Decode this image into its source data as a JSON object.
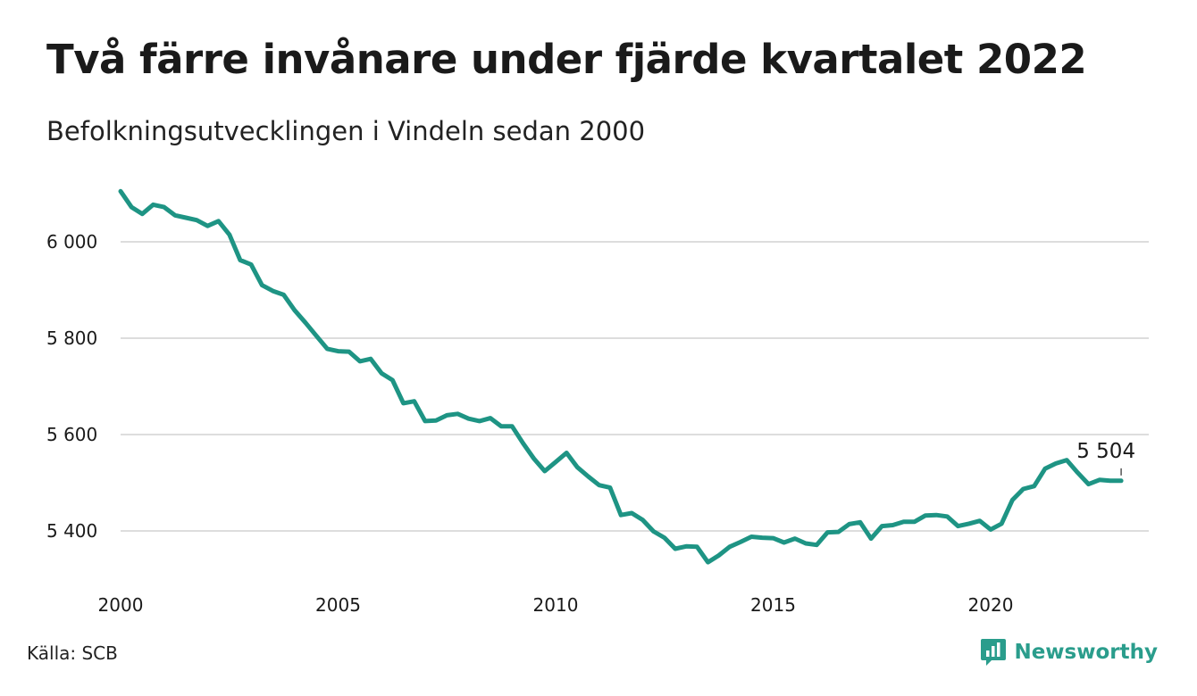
{
  "title": "Två färre invånare under fjärde kvartalet 2022",
  "subtitle": "Befolkningsutvecklingen i Vindeln sedan 2000",
  "source": "Källa: SCB",
  "brand": "Newsworthy",
  "colors": {
    "line": "#1e9484",
    "grid": "#dddddd",
    "brand": "#2a9d8c"
  },
  "chart_data": {
    "type": "line",
    "title": "Två färre invånare under fjärde kvartalet 2022",
    "subtitle": "Befolkningsutvecklingen i Vindeln sedan 2000",
    "xlabel": "",
    "ylabel": "",
    "xlim": [
      2000,
      2023
    ],
    "ylim": [
      5300,
      6110
    ],
    "y_ticks": [
      6000,
      5800,
      5600,
      5400
    ],
    "y_tick_labels": [
      "6 000",
      "5 800",
      "5 600",
      "5 400"
    ],
    "x_ticks": [
      2000,
      2005,
      2010,
      2015,
      2020
    ],
    "x_tick_labels": [
      "2000",
      "2005",
      "2010",
      "2015",
      "2020"
    ],
    "grid": "horizontal",
    "last_value_label": "5 504",
    "series": [
      {
        "x": [
          2000.0,
          2000.25,
          2000.5,
          2000.75,
          2001.0,
          2001.25,
          2001.5,
          2001.75,
          2002.0,
          2002.25,
          2002.5,
          2002.75,
          2003.0,
          2003.25,
          2003.5,
          2003.75,
          2004.0,
          2004.25,
          2004.5,
          2004.75,
          2005.0,
          2005.25,
          2005.5,
          2005.75,
          2006.0,
          2006.25,
          2006.5,
          2006.75,
          2007.0,
          2007.25,
          2007.5,
          2007.75,
          2008.0,
          2008.25,
          2008.5,
          2008.75,
          2009.0,
          2009.25,
          2009.5,
          2009.75,
          2010.0,
          2010.25,
          2010.5,
          2010.75,
          2011.0,
          2011.25,
          2011.5,
          2011.75,
          2012.0,
          2012.25,
          2012.5,
          2012.75,
          2013.0,
          2013.25,
          2013.5,
          2013.75,
          2014.0,
          2014.25,
          2014.5,
          2014.75,
          2015.0,
          2015.25,
          2015.5,
          2015.75,
          2016.0,
          2016.25,
          2016.5,
          2016.75,
          2017.0,
          2017.25,
          2017.5,
          2017.75,
          2018.0,
          2018.25,
          2018.5,
          2018.75,
          2019.0,
          2019.25,
          2019.5,
          2019.75,
          2020.0,
          2020.25,
          2020.5,
          2020.75,
          2021.0,
          2021.25,
          2021.5,
          2021.75,
          2022.0,
          2022.25,
          2022.5,
          2022.75,
          2023.0
        ],
        "values": [
          6105,
          6072,
          6058,
          6077,
          6072,
          6055,
          6050,
          6045,
          6033,
          6043,
          6015,
          5962,
          5953,
          5910,
          5898,
          5890,
          5858,
          5832,
          5805,
          5778,
          5773,
          5772,
          5752,
          5757,
          5727,
          5713,
          5665,
          5669,
          5628,
          5629,
          5640,
          5643,
          5633,
          5628,
          5634,
          5617,
          5617,
          5582,
          5550,
          5524,
          5543,
          5562,
          5532,
          5513,
          5495,
          5490,
          5433,
          5437,
          5423,
          5399,
          5386,
          5363,
          5368,
          5367,
          5335,
          5349,
          5367,
          5377,
          5388,
          5386,
          5385,
          5376,
          5384,
          5374,
          5371,
          5397,
          5398,
          5414,
          5418,
          5384,
          5410,
          5412,
          5419,
          5419,
          5432,
          5433,
          5430,
          5410,
          5415,
          5421,
          5403,
          5415,
          5464,
          5487,
          5493,
          5529,
          5540,
          5547,
          5521,
          5497,
          5506,
          5504,
          5504
        ]
      }
    ]
  }
}
